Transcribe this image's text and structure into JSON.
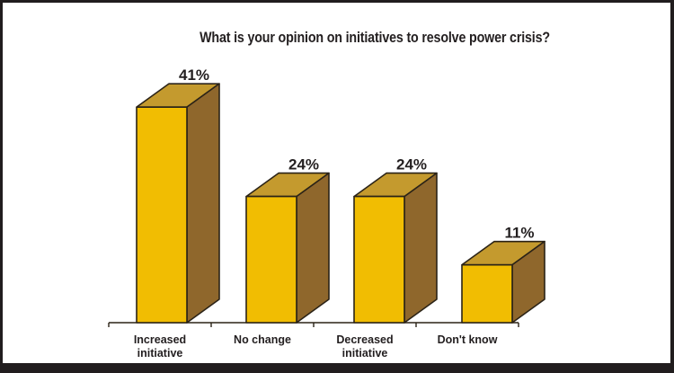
{
  "chart_data": {
    "type": "bar",
    "variant": "3d-column",
    "title": "What is your opinion on initiatives to resolve power crisis?",
    "categories": [
      "Increased initiative",
      "No change",
      "Decreased initiative",
      "Don't know"
    ],
    "categories_lines": [
      [
        "Increased",
        "initiative"
      ],
      [
        "No change"
      ],
      [
        "Decreased",
        "initiative"
      ],
      [
        "Don't know"
      ]
    ],
    "values": [
      41,
      24,
      24,
      11
    ],
    "value_labels": [
      "41%",
      "24%",
      "24%",
      "11%"
    ],
    "unit": "percent",
    "xlabel": "",
    "ylabel": "",
    "ylim": [
      0,
      45
    ],
    "grid": false,
    "legend": false,
    "colors": {
      "bar_front": "#F1BD02",
      "bar_top": "#C49A2E",
      "bar_side": "#8F672C",
      "outline": "#2B2317",
      "text": "#231F20",
      "background": "#FFFFFF",
      "frame_border": "#211D1E"
    }
  }
}
